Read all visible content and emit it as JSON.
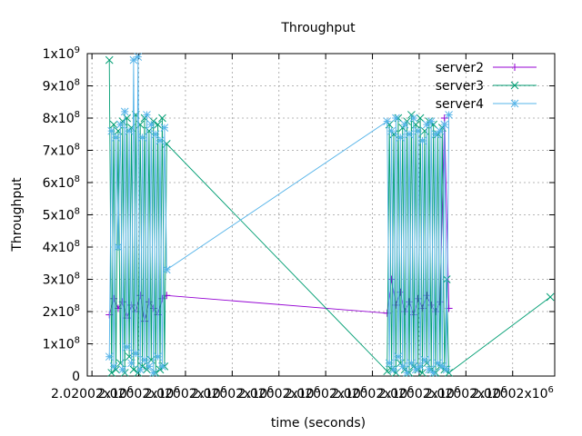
{
  "chart_data": {
    "type": "line",
    "title": "Throughput",
    "xlabel": "time (seconds)",
    "ylabel": "Throughput",
    "xlim": [
      1587686400,
      1587697000
    ],
    "ylim": [
      0,
      1000000000
    ],
    "grid": true,
    "legend_position": "top-right",
    "x_tick_labels": [
      "2.02002x10^6",
      "2.02002x10^6",
      "2.02002x10^6",
      "2.02002x10^6",
      "2.02002x10^6",
      "2.02002x10^6",
      "2.02002x10^6",
      "2.02002x10^6",
      "2.02002x10^6",
      "2.02002x10^6"
    ],
    "y_ticks": [
      {
        "label": "0",
        "value": 0
      },
      {
        "label": "1x10",
        "exp": "8",
        "value": 100000000
      },
      {
        "label": "2x10",
        "exp": "8",
        "value": 200000000
      },
      {
        "label": "3x10",
        "exp": "8",
        "value": 300000000
      },
      {
        "label": "4x10",
        "exp": "8",
        "value": 400000000
      },
      {
        "label": "5x10",
        "exp": "8",
        "value": 500000000
      },
      {
        "label": "6x10",
        "exp": "8",
        "value": 600000000
      },
      {
        "label": "7x10",
        "exp": "8",
        "value": 700000000
      },
      {
        "label": "8x10",
        "exp": "8",
        "value": 800000000
      },
      {
        "label": "9x10",
        "exp": "8",
        "value": 900000000
      },
      {
        "label": "1x10",
        "exp": "9",
        "value": 1000000000
      }
    ],
    "series": [
      {
        "name": "server2",
        "color": "#9400d3",
        "marker": "plus",
        "x": [
          1587686900,
          1587687000,
          1587687100,
          1587687200,
          1587687300,
          1587687400,
          1587687500,
          1587687600,
          1587687700,
          1587687800,
          1587687900,
          1587688000,
          1587688100,
          1587688200,
          1587693200,
          1587693300,
          1587693400,
          1587693500,
          1587693600,
          1587693700,
          1587693800,
          1587693900,
          1587694000,
          1587694100,
          1587694200,
          1587694300,
          1587694400,
          1587694500,
          1587694600
        ],
        "y": [
          190000000,
          240000000,
          210000000,
          230000000,
          180000000,
          220000000,
          200000000,
          250000000,
          170000000,
          230000000,
          210000000,
          190000000,
          240000000,
          250000000,
          195000000,
          300000000,
          220000000,
          260000000,
          200000000,
          230000000,
          190000000,
          240000000,
          210000000,
          250000000,
          220000000,
          200000000,
          230000000,
          800000000,
          210000000
        ]
      },
      {
        "name": "server3",
        "color": "#009e73",
        "marker": "x",
        "x": [
          1587686900,
          1587686950,
          1587687000,
          1587687050,
          1587687100,
          1587687150,
          1587687200,
          1587687250,
          1587687300,
          1587687350,
          1587687400,
          1587687450,
          1587687500,
          1587687550,
          1587687600,
          1587687650,
          1587687700,
          1587687750,
          1587687800,
          1587687850,
          1587687900,
          1587687950,
          1587688000,
          1587688050,
          1587688100,
          1587688150,
          1587688200,
          1587693200,
          1587693250,
          1587693300,
          1587693350,
          1587693400,
          1587693450,
          1587693500,
          1587693550,
          1587693600,
          1587693650,
          1587693700,
          1587693750,
          1587693800,
          1587693850,
          1587693900,
          1587693950,
          1587694000,
          1587694050,
          1587694100,
          1587694150,
          1587694200,
          1587694250,
          1587694300,
          1587694350,
          1587694400,
          1587694450,
          1587694500,
          1587694550,
          1587694600,
          1587696900
        ],
        "y": [
          980000000,
          10000000,
          780000000,
          20000000,
          760000000,
          40000000,
          790000000,
          10000000,
          800000000,
          60000000,
          770000000,
          20000000,
          810000000,
          10000000,
          780000000,
          30000000,
          800000000,
          20000000,
          760000000,
          50000000,
          790000000,
          10000000,
          780000000,
          20000000,
          800000000,
          30000000,
          720000000,
          15000000,
          780000000,
          20000000,
          750000000,
          10000000,
          800000000,
          40000000,
          770000000,
          20000000,
          790000000,
          10000000,
          810000000,
          30000000,
          780000000,
          20000000,
          800000000,
          10000000,
          760000000,
          40000000,
          790000000,
          20000000,
          780000000,
          10000000,
          750000000,
          30000000,
          770000000,
          20000000,
          300000000,
          10000000,
          245000000
        ]
      },
      {
        "name": "server4",
        "color": "#56b4e9",
        "marker": "star",
        "x": [
          1587686900,
          1587686950,
          1587687000,
          1587687050,
          1587687100,
          1587687150,
          1587687200,
          1587687250,
          1587687300,
          1587687350,
          1587687400,
          1587687450,
          1587687500,
          1587687550,
          1587687600,
          1587687650,
          1587687700,
          1587687750,
          1587687800,
          1587687850,
          1587687900,
          1587687950,
          1587688000,
          1587688050,
          1587688100,
          1587688150,
          1587688200,
          1587693200,
          1587693250,
          1587693300,
          1587693350,
          1587693400,
          1587693450,
          1587693500,
          1587693550,
          1587693600,
          1587693650,
          1587693700,
          1587693750,
          1587693800,
          1587693850,
          1587693900,
          1587693950,
          1587694000,
          1587694050,
          1587694100,
          1587694150,
          1587694200,
          1587694250,
          1587694300,
          1587694350,
          1587694400,
          1587694450,
          1587694500,
          1587694550,
          1587694600
        ],
        "y": [
          60000000,
          760000000,
          30000000,
          740000000,
          400000000,
          780000000,
          20000000,
          820000000,
          90000000,
          760000000,
          40000000,
          980000000,
          70000000,
          990000000,
          20000000,
          740000000,
          50000000,
          810000000,
          30000000,
          780000000,
          10000000,
          750000000,
          60000000,
          730000000,
          30000000,
          770000000,
          330000000,
          790000000,
          40000000,
          760000000,
          20000000,
          800000000,
          60000000,
          740000000,
          30000000,
          780000000,
          10000000,
          750000000,
          40000000,
          800000000,
          20000000,
          760000000,
          30000000,
          730000000,
          50000000,
          780000000,
          20000000,
          790000000,
          10000000,
          750000000,
          40000000,
          760000000,
          30000000,
          780000000,
          20000000,
          810000000
        ]
      }
    ]
  }
}
